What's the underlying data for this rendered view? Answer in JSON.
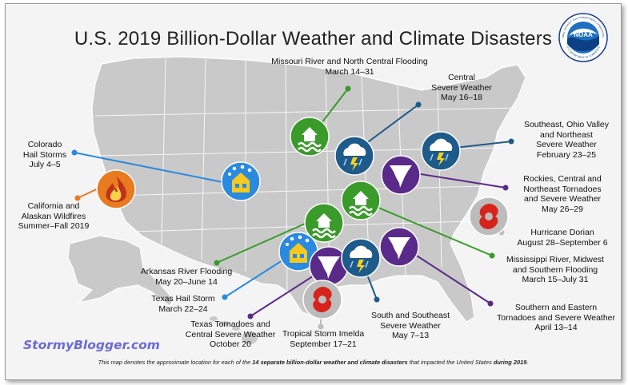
{
  "title": "U.S. 2019 Billion-Dollar Weather and Climate Disasters",
  "colors": {
    "flood": "#3a9a2a",
    "severe_storm": "#1e5a8a",
    "tornado": "#5a2a8a",
    "hail": "#2a8ae0",
    "wildfire": "#e87a20",
    "tropical_cyclone": "#bcbcbc"
  },
  "events": [
    {
      "lines": [
        "Missouri River and North Central Flooding",
        "March 14–31"
      ],
      "type": "flooding",
      "icon": "flood-icon"
    },
    {
      "lines": [
        "Central",
        "Severe Weather",
        "May 16–18"
      ],
      "type": "severe_storm",
      "icon": "storm-icon"
    },
    {
      "lines": [
        "Southeast, Ohio Valley",
        "and Northeast",
        "Severe Weather",
        "February 23–25"
      ],
      "type": "severe_storm",
      "icon": "storm-icon"
    },
    {
      "lines": [
        "Colorado",
        "Hail Storms",
        "July 4–5"
      ],
      "type": "hail",
      "icon": "hail-icon"
    },
    {
      "lines": [
        "California and",
        "Alaskan Wildfires",
        "Summer–Fall 2019"
      ],
      "type": "wildfire",
      "icon": "fire-icon"
    },
    {
      "lines": [
        "Rockies, Central and",
        "Northeast Tornadoes",
        "and Severe Weather",
        "May 26–29"
      ],
      "type": "tornado",
      "icon": "tornado-icon"
    },
    {
      "lines": [
        "Hurricane Dorian",
        "August 28–September 6"
      ],
      "type": "tropical_cyclone",
      "icon": "hurricane-icon"
    },
    {
      "lines": [
        "Arkansas River Flooding",
        "May 20–June 14"
      ],
      "type": "flooding",
      "icon": "flood-icon"
    },
    {
      "lines": [
        "Mississippi River, Midwest",
        "and Southern Flooding",
        "March 15–July 31"
      ],
      "type": "flooding",
      "icon": "flood-icon"
    },
    {
      "lines": [
        "Texas Hail Storm",
        "March 22–24"
      ],
      "type": "hail",
      "icon": "hail-icon"
    },
    {
      "lines": [
        "Southern and Eastern",
        "Tornadoes and Severe Weather",
        "April 13–14"
      ],
      "type": "tornado",
      "icon": "tornado-icon"
    },
    {
      "lines": [
        "Texas Tornadoes and",
        "Central Severe Weather",
        "October 20"
      ],
      "type": "tornado",
      "icon": "tornado-icon"
    },
    {
      "lines": [
        "South and Southeast",
        "Severe Weather",
        "May 7–13"
      ],
      "type": "severe_storm",
      "icon": "storm-icon"
    },
    {
      "lines": [
        "Tropical Storm Imelda",
        "September 17–21"
      ],
      "type": "tropical_cyclone",
      "icon": "hurricane-icon"
    }
  ],
  "watermark": "StormyBlogger.com",
  "footnote": {
    "prefix": "This map denotes the approximate location for each of the ",
    "bold1": "14 separate billion-dollar weather and climate disasters",
    "middle": " that impacted the United States ",
    "bold2": "during 2019",
    "suffix": "."
  },
  "logo": {
    "text": "NOAA",
    "ring_top": "NATIONAL OCEANIC AND ATMOSPHERIC ADMINISTRATION",
    "ring_bottom": "U.S. DEPARTMENT OF COMMERCE"
  }
}
